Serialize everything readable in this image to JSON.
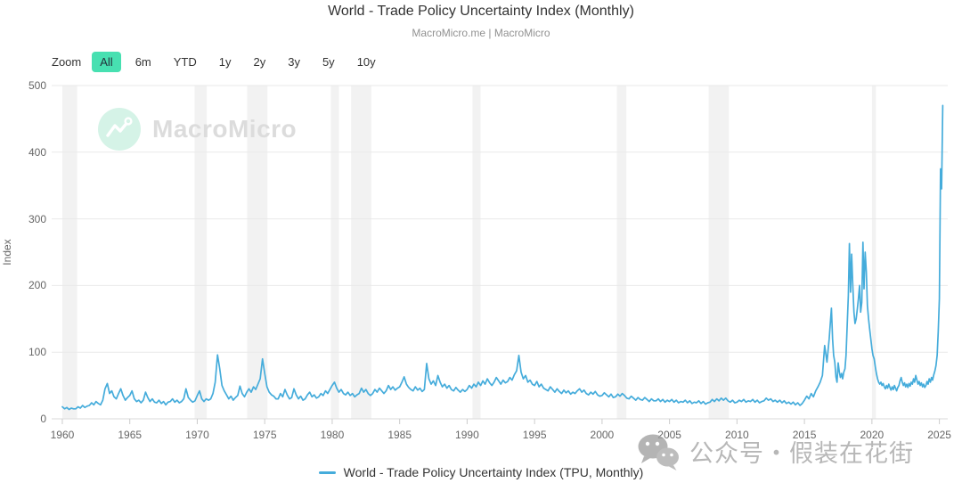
{
  "title": "World - Trade Policy Uncertainty Index (Monthly)",
  "subtitle": "MacroMicro.me | MacroMicro",
  "toolbar": {
    "zoom_label": "Zoom",
    "buttons": [
      {
        "label": "All",
        "selected": true
      },
      {
        "label": "6m",
        "selected": false
      },
      {
        "label": "YTD",
        "selected": false
      },
      {
        "label": "1y",
        "selected": false
      },
      {
        "label": "2y",
        "selected": false
      },
      {
        "label": "3y",
        "selected": false
      },
      {
        "label": "5y",
        "selected": false
      },
      {
        "label": "10y",
        "selected": false
      }
    ]
  },
  "watermark": {
    "brand": "MacroMicro"
  },
  "footer_watermark": {
    "icon": "wechat-icon",
    "text": "公众号・假装在花街"
  },
  "legend": [
    {
      "label": "World - Trade Policy Uncertainty Index (TPU, Monthly)",
      "color": "#45acdb"
    }
  ],
  "colors": {
    "line": "#45acdb",
    "band": "#f2f2f2",
    "grid": "#e9e9e9",
    "axis": "#d9d9d9",
    "tick": "#cccccc",
    "accent": "#47e0b1"
  },
  "chart_data": {
    "type": "line",
    "title": "World - Trade Policy Uncertainty Index (Monthly)",
    "xlabel": "",
    "ylabel": "Index",
    "xlim": [
      1959.21,
      2025.62
    ],
    "ylim": [
      0,
      500
    ],
    "x_ticks": [
      1960,
      1965,
      1970,
      1975,
      1980,
      1985,
      1990,
      1995,
      2000,
      2005,
      2010,
      2015,
      2020,
      2025
    ],
    "y_ticks": [
      0,
      100,
      200,
      300,
      400,
      500
    ],
    "grid": "horizontal-only",
    "legend_position": "bottom-center",
    "recession_bands": [
      [
        1960.0,
        1961.1
      ],
      [
        1969.8,
        1970.7
      ],
      [
        1973.7,
        1975.2
      ],
      [
        1979.9,
        1980.5
      ],
      [
        1981.4,
        1982.9
      ],
      [
        1990.4,
        1991.0
      ],
      [
        2001.1,
        2001.8
      ],
      [
        2007.9,
        2009.4
      ],
      [
        2020.0,
        2020.3
      ]
    ],
    "series": [
      {
        "name": "World - Trade Policy Uncertainty Index (TPU, Monthly)",
        "color": "#45acdb",
        "segments": [
          {
            "start": 1960.0,
            "step": 0.166667,
            "values": [
              18,
              15,
              17,
              14,
              16,
              15,
              15,
              18,
              16,
              20,
              17,
              19,
              20,
              24,
              21,
              26,
              23,
              21,
              28,
              45,
              53,
              38,
              42,
              33,
              30,
              38,
              45,
              35,
              28,
              32,
              35,
              42,
              30,
              26,
              28,
              24,
              28,
              40,
              32,
              26,
              30,
              25,
              24,
              28,
              23,
              26,
              21,
              25,
              26,
              30,
              25,
              28,
              24,
              26,
              30,
              45,
              32,
              28,
              25,
              27,
              35,
              42,
              30,
              26,
              30,
              28,
              30,
              38,
              55,
              96,
              75,
              50,
              42,
              36,
              30,
              34,
              28,
              32,
              35,
              49,
              38,
              33,
              40,
              45,
              40,
              48,
              44,
              52,
              60,
              90,
              68,
              48,
              40,
              36,
              34,
              30,
              30,
              38,
              33,
              44,
              36,
              30,
              32,
              45,
              36,
              30,
              34,
              28,
              30,
              36,
              40,
              33,
              36,
              31,
              33,
              38,
              35,
              42,
              38,
              44,
              50,
              55,
              46,
              40,
              44,
              38,
              36,
              40,
              35,
              38,
              33,
              36,
              38,
              46,
              40,
              44,
              38,
              35,
              38,
              44,
              40,
              46,
              42,
              38,
              42,
              50,
              44,
              48,
              43,
              46,
              48,
              55,
              63,
              52,
              47,
              44,
              42,
              48,
              43,
              46,
              41,
              44,
              83,
              60,
              52,
              57,
              50,
              65,
              55,
              48,
              52,
              46,
              50,
              44,
              42,
              47,
              43,
              40,
              44,
              41,
              44,
              50,
              46,
              52,
              48,
              55,
              50,
              57,
              52,
              60,
              54,
              50,
              55,
              62,
              57,
              52,
              58,
              54,
              56,
              62,
              58,
              66,
              72,
              95,
              70,
              60,
              65,
              55,
              58,
              52,
              50,
              56,
              48,
              52,
              46,
              44,
              42,
              48,
              44,
              40,
              45,
              41,
              38,
              43,
              39,
              42,
              37,
              40,
              38,
              42,
              45,
              40,
              43,
              38,
              36,
              40,
              37,
              41,
              36,
              34,
              35,
              39,
              36,
              33,
              37,
              32,
              33,
              37,
              34,
              38,
              35,
              31,
              30,
              34,
              31,
              28,
              32,
              29,
              28,
              32,
              29,
              26,
              30,
              27,
              27,
              30,
              26,
              29,
              25,
              28,
              26,
              29,
              25,
              28,
              24,
              26,
              25,
              28,
              24,
              27,
              23,
              25,
              24,
              27,
              23,
              26,
              22,
              24,
              25,
              29,
              26,
              30,
              27,
              31,
              28,
              31,
              27,
              25,
              28,
              24,
              25,
              28,
              26,
              29,
              25,
              27,
              26,
              29,
              25,
              28,
              24,
              26,
              27,
              31,
              28,
              30,
              26,
              28,
              25,
              28,
              24,
              27,
              23,
              25,
              22,
              25,
              21,
              24,
              20,
              23,
              28,
              34,
              30,
              38,
              33,
              42,
              48,
              55,
              65,
              110,
              85,
              120
            ]
          },
          {
            "start": 2017.0,
            "step": 0.083333,
            "values": [
              166,
              120,
              95,
              85,
              63,
              55,
              84,
              70,
              62,
              68,
              60,
              70,
              75,
              95,
              140,
              185,
              263,
              190,
              247,
              200,
              160,
              143,
              150,
              165,
              180,
              200,
              160,
              175,
              265,
              195,
              250,
              220,
              170,
              150,
              135,
              120,
              105,
              95,
              90,
              78,
              68,
              60,
              55,
              52,
              55,
              50,
              53,
              48,
              45,
              50,
              46,
              52,
              47,
              43,
              48,
              44,
              50,
              46,
              42,
              47,
              50,
              57,
              62,
              55,
              50,
              54,
              48,
              52,
              47,
              53,
              49,
              55,
              52,
              60,
              55,
              65,
              58,
              52,
              56,
              50,
              54,
              48,
              52,
              47,
              50,
              56,
              52,
              60,
              55,
              62,
              58,
              66,
              72,
              80,
              95,
              130
            ]
          },
          {
            "start": 2025.0,
            "step": 0.083333,
            "values": [
              180,
              375,
              345,
              470
            ]
          }
        ]
      }
    ]
  }
}
